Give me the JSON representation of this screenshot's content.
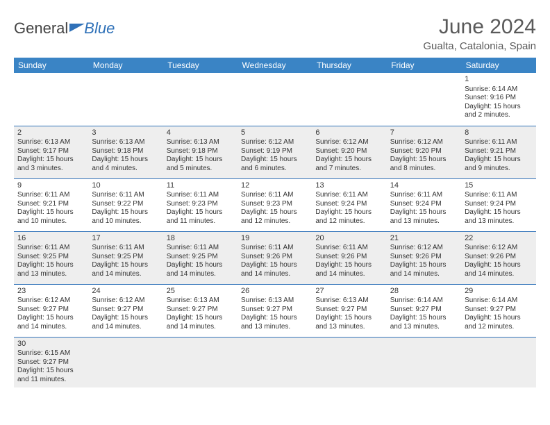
{
  "brand": {
    "part1": "General",
    "part2": "Blue"
  },
  "header": {
    "month": "June 2024",
    "location": "Gualta, Catalonia, Spain"
  },
  "colors": {
    "accent": "#3a84c5",
    "rule": "#2f71b8",
    "bg_alt": "#eeeeee",
    "text": "#333333"
  },
  "weekdays": [
    "Sunday",
    "Monday",
    "Tuesday",
    "Wednesday",
    "Thursday",
    "Friday",
    "Saturday"
  ],
  "weeks": [
    [
      null,
      null,
      null,
      null,
      null,
      null,
      {
        "n": "1",
        "sr": "Sunrise: 6:14 AM",
        "ss": "Sunset: 9:16 PM",
        "dl": "Daylight: 15 hours and 2 minutes."
      }
    ],
    [
      {
        "n": "2",
        "sr": "Sunrise: 6:13 AM",
        "ss": "Sunset: 9:17 PM",
        "dl": "Daylight: 15 hours and 3 minutes."
      },
      {
        "n": "3",
        "sr": "Sunrise: 6:13 AM",
        "ss": "Sunset: 9:18 PM",
        "dl": "Daylight: 15 hours and 4 minutes."
      },
      {
        "n": "4",
        "sr": "Sunrise: 6:13 AM",
        "ss": "Sunset: 9:18 PM",
        "dl": "Daylight: 15 hours and 5 minutes."
      },
      {
        "n": "5",
        "sr": "Sunrise: 6:12 AM",
        "ss": "Sunset: 9:19 PM",
        "dl": "Daylight: 15 hours and 6 minutes."
      },
      {
        "n": "6",
        "sr": "Sunrise: 6:12 AM",
        "ss": "Sunset: 9:20 PM",
        "dl": "Daylight: 15 hours and 7 minutes."
      },
      {
        "n": "7",
        "sr": "Sunrise: 6:12 AM",
        "ss": "Sunset: 9:20 PM",
        "dl": "Daylight: 15 hours and 8 minutes."
      },
      {
        "n": "8",
        "sr": "Sunrise: 6:11 AM",
        "ss": "Sunset: 9:21 PM",
        "dl": "Daylight: 15 hours and 9 minutes."
      }
    ],
    [
      {
        "n": "9",
        "sr": "Sunrise: 6:11 AM",
        "ss": "Sunset: 9:21 PM",
        "dl": "Daylight: 15 hours and 10 minutes."
      },
      {
        "n": "10",
        "sr": "Sunrise: 6:11 AM",
        "ss": "Sunset: 9:22 PM",
        "dl": "Daylight: 15 hours and 10 minutes."
      },
      {
        "n": "11",
        "sr": "Sunrise: 6:11 AM",
        "ss": "Sunset: 9:23 PM",
        "dl": "Daylight: 15 hours and 11 minutes."
      },
      {
        "n": "12",
        "sr": "Sunrise: 6:11 AM",
        "ss": "Sunset: 9:23 PM",
        "dl": "Daylight: 15 hours and 12 minutes."
      },
      {
        "n": "13",
        "sr": "Sunrise: 6:11 AM",
        "ss": "Sunset: 9:24 PM",
        "dl": "Daylight: 15 hours and 12 minutes."
      },
      {
        "n": "14",
        "sr": "Sunrise: 6:11 AM",
        "ss": "Sunset: 9:24 PM",
        "dl": "Daylight: 15 hours and 13 minutes."
      },
      {
        "n": "15",
        "sr": "Sunrise: 6:11 AM",
        "ss": "Sunset: 9:24 PM",
        "dl": "Daylight: 15 hours and 13 minutes."
      }
    ],
    [
      {
        "n": "16",
        "sr": "Sunrise: 6:11 AM",
        "ss": "Sunset: 9:25 PM",
        "dl": "Daylight: 15 hours and 13 minutes."
      },
      {
        "n": "17",
        "sr": "Sunrise: 6:11 AM",
        "ss": "Sunset: 9:25 PM",
        "dl": "Daylight: 15 hours and 14 minutes."
      },
      {
        "n": "18",
        "sr": "Sunrise: 6:11 AM",
        "ss": "Sunset: 9:25 PM",
        "dl": "Daylight: 15 hours and 14 minutes."
      },
      {
        "n": "19",
        "sr": "Sunrise: 6:11 AM",
        "ss": "Sunset: 9:26 PM",
        "dl": "Daylight: 15 hours and 14 minutes."
      },
      {
        "n": "20",
        "sr": "Sunrise: 6:11 AM",
        "ss": "Sunset: 9:26 PM",
        "dl": "Daylight: 15 hours and 14 minutes."
      },
      {
        "n": "21",
        "sr": "Sunrise: 6:12 AM",
        "ss": "Sunset: 9:26 PM",
        "dl": "Daylight: 15 hours and 14 minutes."
      },
      {
        "n": "22",
        "sr": "Sunrise: 6:12 AM",
        "ss": "Sunset: 9:26 PM",
        "dl": "Daylight: 15 hours and 14 minutes."
      }
    ],
    [
      {
        "n": "23",
        "sr": "Sunrise: 6:12 AM",
        "ss": "Sunset: 9:27 PM",
        "dl": "Daylight: 15 hours and 14 minutes."
      },
      {
        "n": "24",
        "sr": "Sunrise: 6:12 AM",
        "ss": "Sunset: 9:27 PM",
        "dl": "Daylight: 15 hours and 14 minutes."
      },
      {
        "n": "25",
        "sr": "Sunrise: 6:13 AM",
        "ss": "Sunset: 9:27 PM",
        "dl": "Daylight: 15 hours and 14 minutes."
      },
      {
        "n": "26",
        "sr": "Sunrise: 6:13 AM",
        "ss": "Sunset: 9:27 PM",
        "dl": "Daylight: 15 hours and 13 minutes."
      },
      {
        "n": "27",
        "sr": "Sunrise: 6:13 AM",
        "ss": "Sunset: 9:27 PM",
        "dl": "Daylight: 15 hours and 13 minutes."
      },
      {
        "n": "28",
        "sr": "Sunrise: 6:14 AM",
        "ss": "Sunset: 9:27 PM",
        "dl": "Daylight: 15 hours and 13 minutes."
      },
      {
        "n": "29",
        "sr": "Sunrise: 6:14 AM",
        "ss": "Sunset: 9:27 PM",
        "dl": "Daylight: 15 hours and 12 minutes."
      }
    ],
    [
      {
        "n": "30",
        "sr": "Sunrise: 6:15 AM",
        "ss": "Sunset: 9:27 PM",
        "dl": "Daylight: 15 hours and 11 minutes."
      },
      null,
      null,
      null,
      null,
      null,
      null
    ]
  ]
}
